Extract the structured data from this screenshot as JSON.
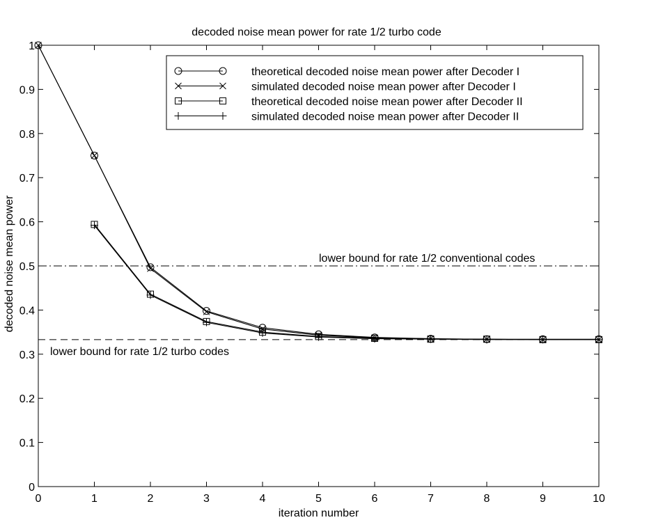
{
  "chart_data": {
    "type": "line",
    "title": "decoded noise mean power for rate 1/2 turbo code",
    "xlabel": "iteration number",
    "ylabel": "decoded noise mean power",
    "xlim": [
      0,
      10
    ],
    "ylim": [
      0,
      1
    ],
    "x_ticks": [
      "0",
      "1",
      "2",
      "3",
      "4",
      "5",
      "6",
      "7",
      "8",
      "9",
      "10"
    ],
    "y_ticks": [
      "0",
      "0.1",
      "0.2",
      "0.3",
      "0.4",
      "0.5",
      "0.6",
      "0.7",
      "0.8",
      "0.9",
      "1"
    ],
    "grid": false,
    "legend_position": "top-right",
    "series": [
      {
        "name": "theoretical decoded noise mean power after Decoder I",
        "marker": "circle",
        "x": [
          0,
          1,
          2,
          3,
          4,
          5,
          6,
          7,
          8,
          9,
          10
        ],
        "values": [
          1.0,
          0.75,
          0.497,
          0.398,
          0.36,
          0.345,
          0.338,
          0.335,
          0.334,
          0.334,
          0.334
        ]
      },
      {
        "name": "simulated decoded noise mean power after Decoder I",
        "marker": "x",
        "x": [
          0,
          1,
          2,
          3,
          4,
          5,
          6,
          7,
          8,
          9,
          10
        ],
        "values": [
          1.0,
          0.75,
          0.494,
          0.396,
          0.357,
          0.343,
          0.337,
          0.335,
          0.334,
          0.333,
          0.333
        ]
      },
      {
        "name": "theoretical decoded noise mean power after Decoder II",
        "marker": "square",
        "x": [
          1,
          2,
          3,
          4,
          5,
          6,
          7,
          8,
          9,
          10
        ],
        "values": [
          0.594,
          0.436,
          0.374,
          0.35,
          0.34,
          0.336,
          0.334,
          0.334,
          0.333,
          0.333
        ]
      },
      {
        "name": "simulated decoded noise mean power after Decoder II",
        "marker": "plus",
        "x": [
          1,
          2,
          3,
          4,
          5,
          6,
          7,
          8,
          9,
          10
        ],
        "values": [
          0.592,
          0.434,
          0.372,
          0.348,
          0.339,
          0.335,
          0.334,
          0.333,
          0.333,
          0.333
        ]
      }
    ],
    "reference_lines": [
      {
        "label": "lower bound for rate 1/2 conventional codes",
        "y": 0.5,
        "style": "dash-dot"
      },
      {
        "label": "lower bound for rate 1/2 turbo codes",
        "y": 0.333,
        "style": "dashed"
      }
    ]
  }
}
